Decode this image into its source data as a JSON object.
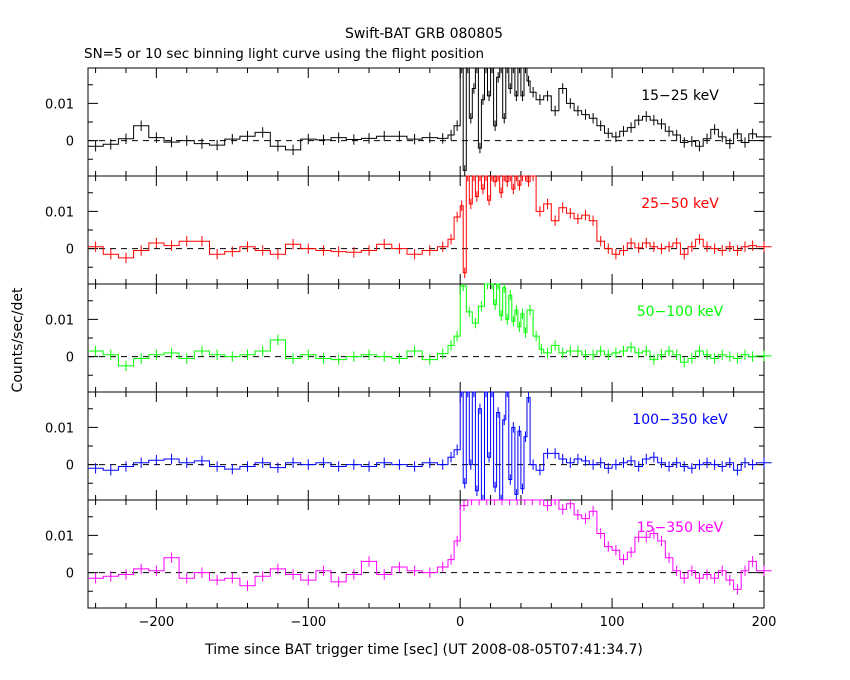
{
  "chart_data": {
    "type": "line",
    "title": "Swift-BAT GRB 080805",
    "subtitle": "SN=5 or 10 sec binning light curve using the flight position",
    "xlabel": "Time since BAT trigger time [sec] (UT 2008-08-05T07:41:34.7)",
    "ylabel": "Counts/sec/det",
    "xlim": [
      -245,
      200
    ],
    "x_ticks": [
      -200,
      -100,
      0,
      100,
      200
    ],
    "x_tick_labels": [
      "−200",
      "−100",
      "0",
      "100",
      "200"
    ],
    "ylim": [
      -0.0095,
      0.0195
    ],
    "y_ticks": [
      0,
      0.01
    ],
    "y_tick_labels": [
      "0",
      "0.01"
    ],
    "zero_line": "dashed",
    "panels": [
      {
        "name": "15−25 keV",
        "color": "#000000",
        "x": [
          -245,
          -235,
          -225,
          -215,
          -205,
          -195,
          -185,
          -175,
          -165,
          -155,
          -145,
          -135,
          -125,
          -115,
          -105,
          -95,
          -85,
          -75,
          -65,
          -55,
          -45,
          -35,
          -25,
          -15,
          -8,
          -4,
          0,
          2,
          4,
          6,
          8,
          10,
          12,
          14,
          16,
          18,
          20,
          22,
          24,
          26,
          28,
          30,
          32,
          34,
          36,
          38,
          40,
          42,
          44,
          46,
          50,
          55,
          60,
          65,
          70,
          75,
          80,
          85,
          90,
          95,
          100,
          105,
          110,
          115,
          120,
          125,
          130,
          135,
          140,
          145,
          150,
          155,
          160,
          165,
          170,
          175,
          180,
          185,
          190,
          195
        ],
        "y": [
          -0.0015,
          -0.001,
          0.0005,
          0.004,
          0.0008,
          -0.0004,
          0.0,
          -0.0008,
          -0.0012,
          0.0004,
          0.0012,
          0.0022,
          -0.0015,
          -0.0025,
          0.0004,
          0.0002,
          0.0008,
          0.0003,
          0.0006,
          0.0012,
          0.0012,
          0.0004,
          0.0008,
          0.0006,
          0.0015,
          0.004,
          0.0195,
          -0.008,
          0.0195,
          0.006,
          0.014,
          0.0195,
          -0.002,
          0.011,
          0.0195,
          0.012,
          0.0195,
          0.004,
          0.017,
          0.0195,
          0.006,
          0.0195,
          0.014,
          0.0195,
          0.012,
          0.0195,
          0.012,
          0.0195,
          0.016,
          0.013,
          0.011,
          0.012,
          0.008,
          0.014,
          0.01,
          0.008,
          0.007,
          0.006,
          0.004,
          0.002,
          0.001,
          0.0025,
          0.0035,
          0.0055,
          0.0065,
          0.0055,
          0.0045,
          0.0025,
          0.0015,
          -0.0005,
          -0.0002,
          -0.0015,
          0.0005,
          0.003,
          0.001,
          -0.0008,
          0.0018,
          -0.0005,
          0.0018,
          0.001
        ]
      },
      {
        "name": "25−50 keV",
        "color": "#ff0000",
        "x": [
          -245,
          -235,
          -225,
          -215,
          -205,
          -195,
          -185,
          -175,
          -165,
          -155,
          -145,
          -135,
          -125,
          -115,
          -105,
          -95,
          -85,
          -75,
          -65,
          -55,
          -45,
          -35,
          -25,
          -15,
          -8,
          -4,
          0,
          2,
          4,
          6,
          8,
          10,
          12,
          14,
          16,
          18,
          20,
          22,
          24,
          26,
          28,
          30,
          32,
          34,
          36,
          38,
          40,
          42,
          44,
          46,
          50,
          55,
          60,
          65,
          70,
          75,
          80,
          85,
          90,
          95,
          100,
          105,
          110,
          115,
          120,
          125,
          130,
          135,
          140,
          145,
          150,
          155,
          160,
          165,
          170,
          175,
          180,
          185,
          190,
          195
        ],
        "y": [
          0.0005,
          -0.0015,
          -0.0025,
          -0.0005,
          0.0015,
          0.0008,
          0.002,
          0.002,
          -0.0015,
          -0.0008,
          0.0005,
          -0.0005,
          -0.0015,
          0.0012,
          0.0,
          -0.0005,
          -0.0008,
          -0.001,
          -0.0005,
          0.0012,
          0.0,
          -0.0015,
          -0.0005,
          0.0005,
          0.0025,
          0.0085,
          0.0115,
          -0.0065,
          0.0195,
          0.012,
          0.0195,
          0.014,
          0.0195,
          0.016,
          0.0195,
          0.013,
          0.0195,
          0.018,
          0.0195,
          0.015,
          0.0195,
          0.018,
          0.0195,
          0.016,
          0.0195,
          0.017,
          0.0195,
          0.0195,
          0.018,
          0.0195,
          0.01,
          0.012,
          0.0075,
          0.011,
          0.0095,
          0.008,
          0.009,
          0.0075,
          0.002,
          0.0,
          -0.0015,
          -0.0005,
          0.0015,
          0.0002,
          0.0015,
          0.0005,
          0.0,
          0.0005,
          0.0015,
          -0.0015,
          0.0005,
          0.0025,
          0.0005,
          0.0,
          -0.0005,
          0.0005,
          -0.0005,
          0.0005,
          0.0008,
          0.0005
        ]
      },
      {
        "name": "50−100 keV",
        "color": "#00ff00",
        "x": [
          -245,
          -235,
          -225,
          -215,
          -205,
          -195,
          -185,
          -175,
          -165,
          -155,
          -145,
          -135,
          -125,
          -115,
          -105,
          -95,
          -85,
          -75,
          -65,
          -55,
          -45,
          -35,
          -25,
          -15,
          -8,
          -4,
          0,
          4,
          8,
          12,
          16,
          20,
          22,
          24,
          26,
          28,
          30,
          32,
          34,
          36,
          38,
          40,
          42,
          44,
          48,
          52,
          55,
          60,
          65,
          70,
          75,
          80,
          85,
          90,
          95,
          100,
          105,
          110,
          115,
          120,
          125,
          130,
          135,
          140,
          145,
          150,
          155,
          160,
          165,
          170,
          175,
          180,
          185,
          190,
          195
        ],
        "y": [
          0.0015,
          0.0005,
          -0.0025,
          -0.0005,
          0.0005,
          0.001,
          -0.0005,
          0.0015,
          0.0005,
          0.0,
          0.0005,
          0.0015,
          0.0045,
          -0.0005,
          0.0005,
          -0.0005,
          -0.0008,
          0.0,
          0.0005,
          0.0,
          -0.0005,
          0.0015,
          -0.0008,
          0.0008,
          0.003,
          0.0055,
          0.019,
          0.012,
          0.009,
          0.0135,
          0.0195,
          0.0195,
          0.014,
          0.0195,
          0.011,
          0.0185,
          0.01,
          0.0165,
          0.0095,
          0.0125,
          0.008,
          0.0115,
          0.0065,
          0.0125,
          0.0055,
          0.002,
          0.001,
          0.003,
          0.001,
          0.0015,
          0.0015,
          0.0005,
          0.0005,
          0.0015,
          0.0005,
          0.001,
          0.0015,
          0.0025,
          0.001,
          0.0015,
          -0.0008,
          0.0005,
          0.0015,
          0.0005,
          -0.0015,
          -0.0005,
          0.0015,
          0.0005,
          -0.0005,
          0.0005,
          0.0,
          -0.0005,
          0.0005,
          0.0,
          0.0002
        ]
      },
      {
        "name": "100−350 keV",
        "color": "#0000ff",
        "x": [
          -245,
          -235,
          -225,
          -215,
          -205,
          -195,
          -185,
          -175,
          -165,
          -155,
          -145,
          -135,
          -125,
          -115,
          -105,
          -95,
          -85,
          -75,
          -65,
          -55,
          -45,
          -35,
          -25,
          -15,
          -8,
          -4,
          0,
          2,
          4,
          6,
          8,
          10,
          12,
          14,
          16,
          18,
          20,
          22,
          24,
          26,
          28,
          30,
          32,
          34,
          36,
          38,
          40,
          42,
          44,
          46,
          50,
          55,
          60,
          65,
          70,
          75,
          80,
          85,
          90,
          95,
          100,
          105,
          110,
          115,
          120,
          125,
          130,
          135,
          140,
          145,
          150,
          155,
          160,
          165,
          170,
          175,
          180,
          185,
          190,
          195
        ],
        "y": [
          -0.001,
          -0.0015,
          -0.0005,
          0.0005,
          0.0012,
          0.0015,
          0.0005,
          0.001,
          -0.0005,
          -0.0012,
          -0.0005,
          0.0005,
          -0.0008,
          0.0005,
          0.0,
          0.0005,
          -0.0005,
          0.0,
          -0.0005,
          0.0005,
          0.0,
          -0.0005,
          0.0005,
          0.0,
          0.002,
          0.004,
          0.0195,
          -0.005,
          0.0195,
          0.0,
          0.0195,
          -0.007,
          0.015,
          -0.0095,
          0.0195,
          0.002,
          0.0195,
          -0.006,
          0.014,
          -0.0095,
          0.012,
          0.0195,
          -0.004,
          0.01,
          -0.008,
          0.009,
          -0.0065,
          0.0075,
          0.018,
          0.0,
          -0.0015,
          0.003,
          0.003,
          0.0015,
          0.0005,
          0.0015,
          0.001,
          0.0,
          0.0005,
          -0.001,
          0.0,
          0.0005,
          0.001,
          -0.0005,
          0.0015,
          0.002,
          0.0005,
          -0.0005,
          0.0005,
          -0.0005,
          -0.001,
          0.0,
          0.0005,
          0.0,
          -0.0005,
          0.0005,
          -0.0015,
          0.0005,
          0.0,
          0.0005
        ]
      },
      {
        "name": "15−350 keV",
        "color": "#ff00ff",
        "x": [
          -245,
          -235,
          -225,
          -215,
          -205,
          -195,
          -185,
          -175,
          -165,
          -155,
          -145,
          -135,
          -125,
          -115,
          -105,
          -95,
          -85,
          -75,
          -65,
          -55,
          -45,
          -35,
          -25,
          -15,
          -8,
          -4,
          0,
          5,
          10,
          15,
          20,
          25,
          30,
          35,
          40,
          45,
          50,
          55,
          60,
          65,
          70,
          75,
          80,
          85,
          90,
          95,
          100,
          105,
          110,
          115,
          120,
          125,
          130,
          135,
          140,
          145,
          150,
          155,
          160,
          165,
          170,
          175,
          180,
          185,
          190,
          195
        ],
        "y": [
          -0.0015,
          -0.001,
          -0.0005,
          0.001,
          0.0005,
          0.004,
          -0.0015,
          0.0,
          -0.002,
          -0.0015,
          -0.0035,
          -0.001,
          0.001,
          -0.0005,
          -0.002,
          0.0005,
          -0.0025,
          -0.0005,
          0.003,
          -0.0005,
          0.0015,
          0.0005,
          0.0,
          0.0015,
          0.0035,
          0.0085,
          0.018,
          0.0195,
          0.0195,
          0.0195,
          0.0195,
          0.0195,
          0.0195,
          0.0195,
          0.0195,
          0.0195,
          0.0195,
          0.018,
          0.0195,
          0.017,
          0.0185,
          0.0155,
          0.0145,
          0.0165,
          0.0105,
          0.007,
          0.006,
          0.0035,
          0.0055,
          0.0095,
          0.0095,
          0.0105,
          0.0085,
          0.004,
          0.0005,
          -0.0015,
          0.0005,
          -0.0015,
          -0.0005,
          -0.0015,
          0.0005,
          -0.002,
          -0.0045,
          0.0005,
          0.003,
          0.0005
        ]
      }
    ]
  }
}
